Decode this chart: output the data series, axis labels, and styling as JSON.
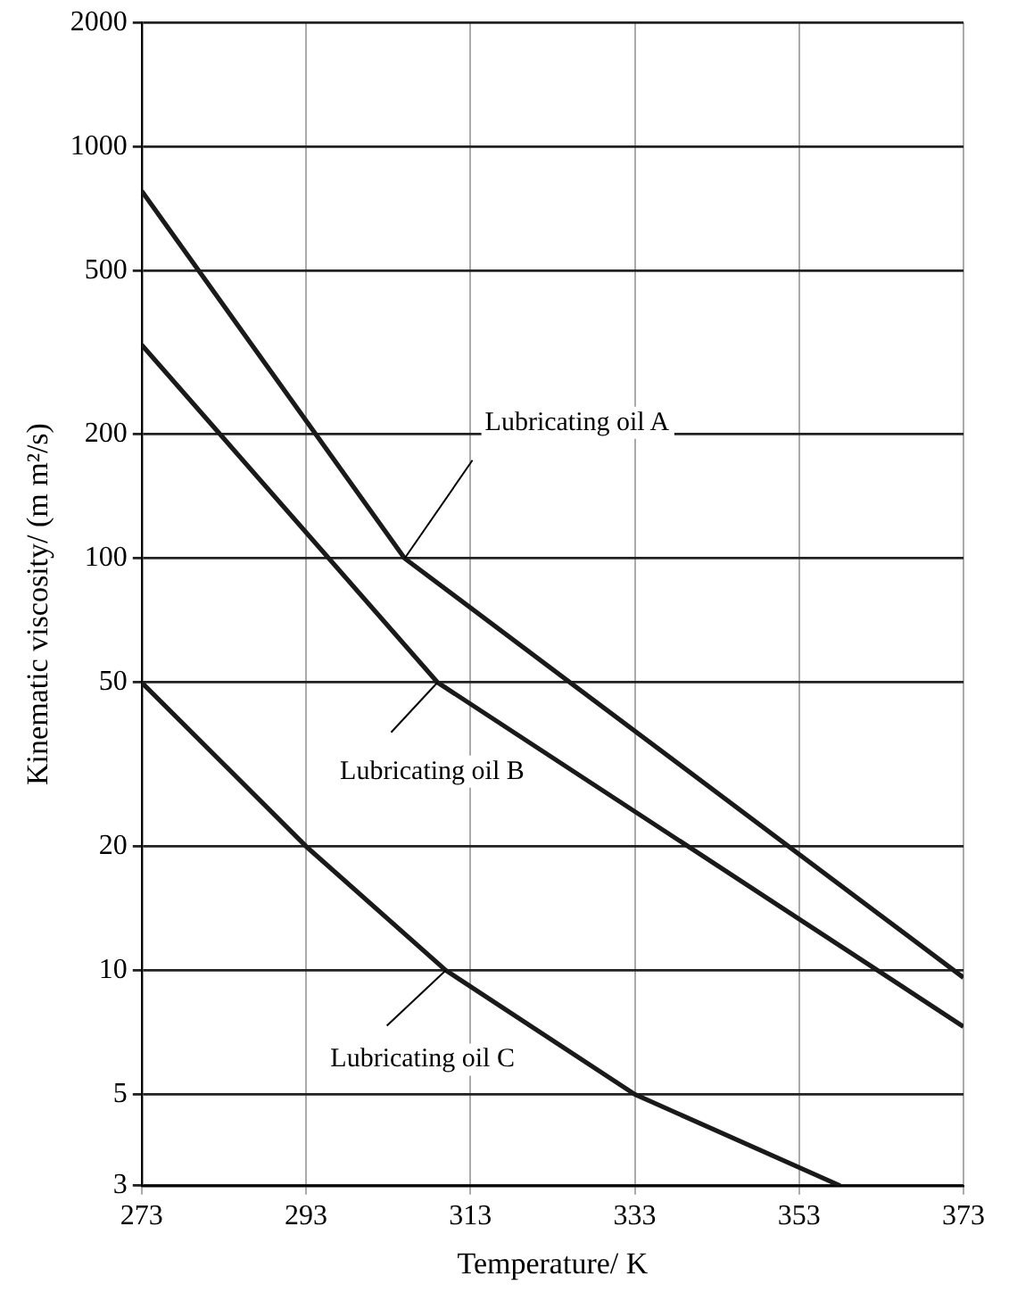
{
  "chart_data": {
    "type": "line",
    "xlabel": "Temperature/ K",
    "ylabel": "Kinematic viscosity/ (m m²/s)",
    "xlim": [
      273,
      373
    ],
    "xticks": [
      273,
      293,
      313,
      333,
      353,
      373
    ],
    "ylim": [
      3,
      2000
    ],
    "yticks": [
      3,
      5,
      10,
      20,
      50,
      100,
      200,
      500,
      1000,
      2000
    ],
    "log": true,
    "grid": true,
    "legend": false,
    "marker": "none",
    "line_style": "solid",
    "series": [
      {
        "color": "#1a1a1a",
        "x": [
          273,
          305,
          373
        ],
        "values": [
          780,
          100,
          9.6
        ]
      },
      {
        "color": "#1a1a1a",
        "x": [
          273,
          309,
          373
        ],
        "values": [
          330,
          50,
          7.3
        ]
      },
      {
        "color": "#1a1a1a",
        "x": [
          273,
          293,
          310,
          333,
          358
        ],
        "values": [
          50,
          20,
          10,
          5,
          3
        ]
      }
    ],
    "annotations": [
      {
        "text": "Lubricating oil A",
        "x": 305,
        "y": 100
      },
      {
        "text": "Lubricating oil B",
        "x": 309,
        "y": 50
      },
      {
        "text": "Lubricating oil C",
        "x": 310,
        "y": 10
      }
    ]
  }
}
